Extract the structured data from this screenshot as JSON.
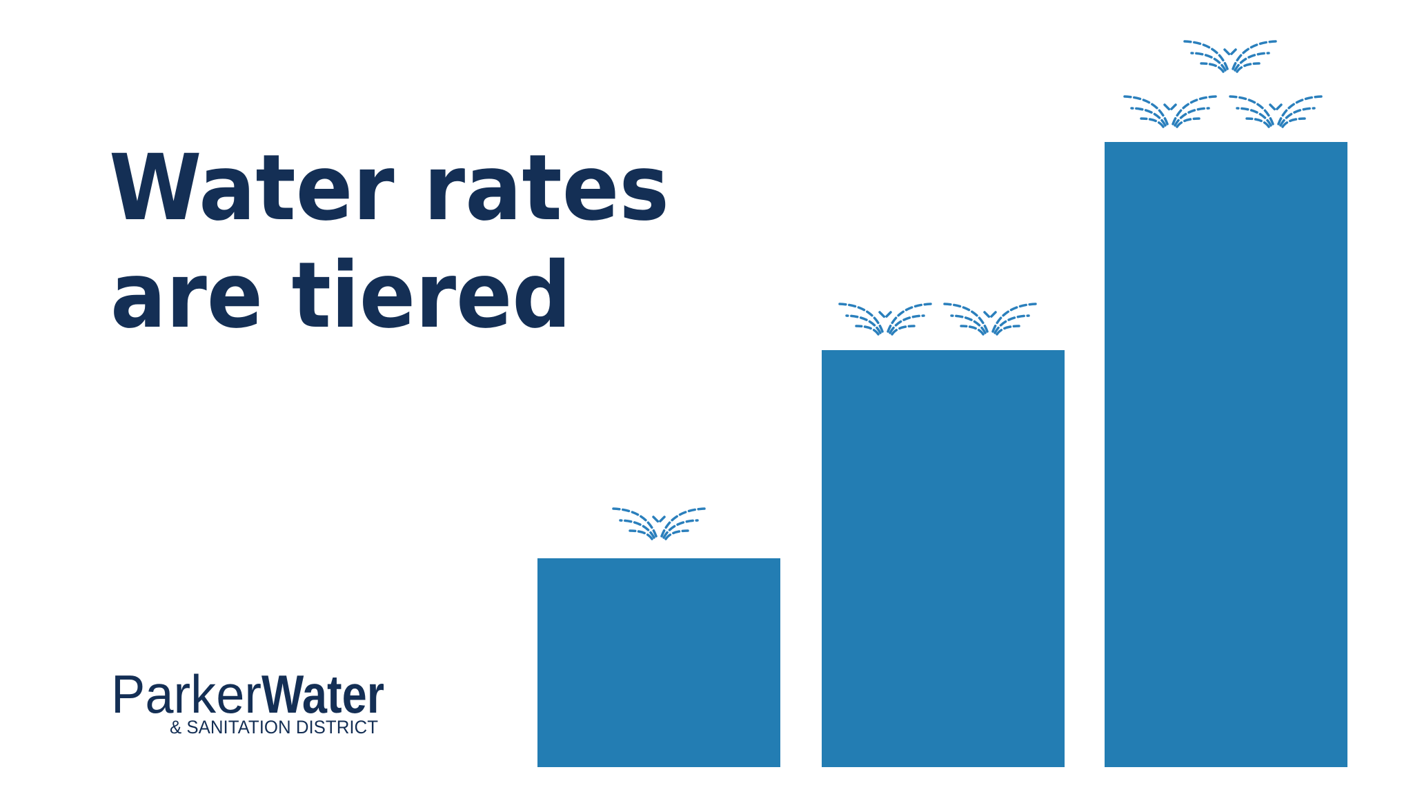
{
  "title": {
    "line1": "Water rates",
    "line2": "are tiered"
  },
  "logo": {
    "name1": "Parker",
    "name2": "Water",
    "subtitle": "& SANITATION DISTRICT"
  }
}
